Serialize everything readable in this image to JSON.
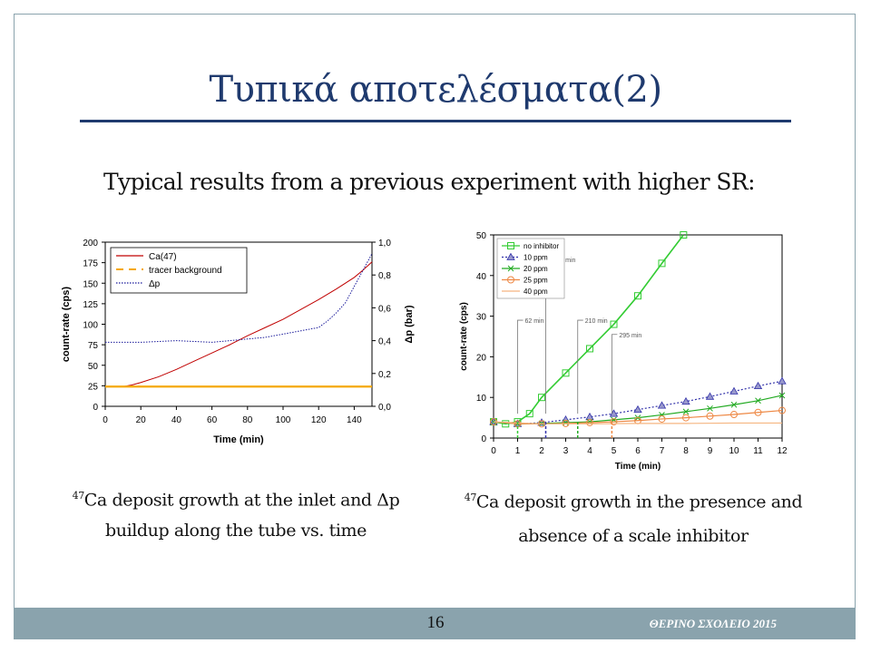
{
  "slide": {
    "title": "Τυπικά αποτελέσματα(2)",
    "subtitle": "Typical results from a previous experiment with higher SR:",
    "caption_left_sup": "47",
    "caption_left_line1": "Ca deposit growth at the inlet and Δp",
    "caption_left_line2": "buildup along the tube vs. time",
    "caption_right_sup": "47",
    "caption_right_line1": "Ca deposit growth in the presence and",
    "caption_right_line2": "absence of a scale inhibitor",
    "page_number": "16",
    "footer_text": "ΘΕΡΙΝΟ ΣΧΟΛΕΙΟ 2015"
  },
  "chart_data": [
    {
      "type": "line",
      "xlabel": "Time (min)",
      "ylabel": "count-rate (cps)",
      "y2label": "Δp (bar)",
      "xlim": [
        0,
        150
      ],
      "ylim": [
        0,
        200
      ],
      "y2lim": [
        0,
        1.0
      ],
      "xticks": [
        "0",
        "20",
        "40",
        "60",
        "80",
        "100",
        "120",
        "140"
      ],
      "yticks": [
        "0",
        "25",
        "50",
        "75",
        "100",
        "125",
        "150",
        "175",
        "200"
      ],
      "y2ticks": [
        "0,0",
        "0,2",
        "0,4",
        "0,6",
        "0,8",
        "1,0"
      ],
      "grid": false,
      "legend": "top-left",
      "series": [
        {
          "name": "Ca(47)",
          "color": "#c00000",
          "axis": "left",
          "x": [
            0,
            10,
            15,
            20,
            30,
            40,
            50,
            60,
            70,
            80,
            90,
            100,
            110,
            120,
            130,
            140,
            145,
            150
          ],
          "y": [
            24,
            24,
            26,
            29,
            36,
            45,
            55,
            65,
            75,
            86,
            96,
            106,
            118,
            130,
            143,
            157,
            166,
            176
          ]
        },
        {
          "name": "tracer background",
          "color": "#f5a800",
          "axis": "left",
          "x": [
            0,
            150
          ],
          "y": [
            24,
            24
          ]
        },
        {
          "name": "Δp",
          "color": "#1a1a9a",
          "axis": "right",
          "x": [
            0,
            20,
            40,
            60,
            70,
            80,
            90,
            100,
            110,
            120,
            125,
            130,
            135,
            140,
            145,
            150
          ],
          "y": [
            0.39,
            0.39,
            0.4,
            0.39,
            0.4,
            0.41,
            0.42,
            0.44,
            0.46,
            0.48,
            0.52,
            0.57,
            0.63,
            0.73,
            0.83,
            0.93
          ]
        }
      ]
    },
    {
      "type": "line",
      "xlabel": "Time (min)",
      "ylabel": "count-rate (cps)",
      "xlim": [
        0,
        12
      ],
      "ylim": [
        0,
        50
      ],
      "xticks": [
        "0",
        "1",
        "2",
        "3",
        "4",
        "5",
        "6",
        "7",
        "8",
        "9",
        "10",
        "11",
        "12"
      ],
      "yticks": [
        "0",
        "10",
        "20",
        "30",
        "40",
        "50"
      ],
      "grid": false,
      "legend": "top-left",
      "series": [
        {
          "name": "no inhibitor",
          "color": "#33cc33",
          "marker": "square",
          "x": [
            0,
            0.5,
            1,
            1.5,
            2,
            3,
            4,
            5,
            6,
            7,
            7.9
          ],
          "y": [
            4,
            3.5,
            4,
            6,
            10,
            16,
            22,
            28,
            35,
            43,
            50
          ]
        },
        {
          "name": "10 ppm",
          "color": "#3333aa",
          "marker": "triangle",
          "x": [
            0,
            1,
            2,
            3,
            4,
            5,
            6,
            7,
            8,
            9,
            10,
            11,
            12
          ],
          "y": [
            4,
            3.5,
            3.8,
            4.5,
            5.2,
            6,
            7,
            8,
            9,
            10.2,
            11.5,
            12.8,
            14
          ]
        },
        {
          "name": "20 ppm",
          "color": "#22aa22",
          "marker": "x",
          "x": [
            0,
            1,
            2,
            3,
            4,
            5,
            6,
            7,
            8,
            9,
            10,
            11,
            12
          ],
          "y": [
            4,
            3.5,
            3.6,
            3.8,
            4,
            4.5,
            5,
            5.7,
            6.5,
            7.3,
            8.2,
            9.2,
            10.5
          ]
        },
        {
          "name": "25 ppm",
          "color": "#ee8844",
          "marker": "circle",
          "x": [
            0,
            1,
            2,
            3,
            4,
            5,
            6,
            7,
            8,
            9,
            10,
            11,
            12
          ],
          "y": [
            4,
            3.5,
            3.5,
            3.6,
            3.8,
            4,
            4.3,
            4.7,
            5,
            5.4,
            5.8,
            6.3,
            6.8
          ]
        },
        {
          "name": "40 ppm",
          "color": "#f5b580",
          "marker": "none",
          "x": [
            0,
            2,
            4,
            6,
            8,
            10,
            12
          ],
          "y": [
            4,
            3.5,
            3.5,
            3.6,
            3.6,
            3.7,
            3.7
          ]
        }
      ],
      "markers": [
        {
          "label": "62 min",
          "x": 1.0,
          "color": "#33cc33",
          "label_y": 29
        },
        {
          "label": "130 min",
          "x": 2.17,
          "color": "#3333aa",
          "label_y": 44
        },
        {
          "label": "210 min",
          "x": 3.5,
          "color": "#22aa22",
          "label_y": 29
        },
        {
          "label": "295 min",
          "x": 4.92,
          "color": "#ee8844",
          "label_y": 25.5
        }
      ]
    }
  ]
}
